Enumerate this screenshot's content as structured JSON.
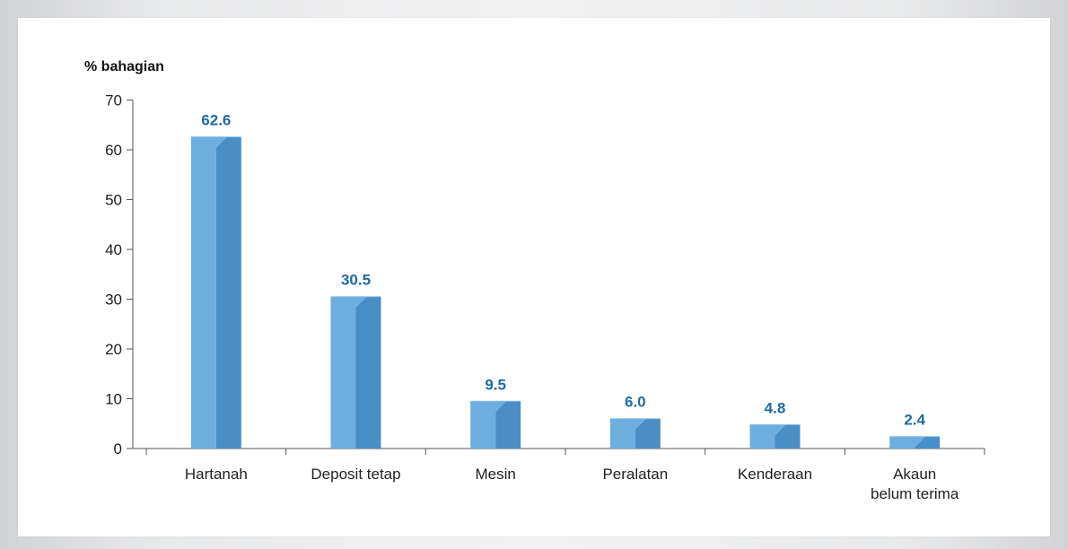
{
  "chart_data": {
    "type": "bar",
    "title": "",
    "xlabel": "",
    "ylabel": "% bahagian",
    "ylim": [
      0,
      70
    ],
    "yticks": [
      0,
      10,
      20,
      30,
      40,
      50,
      60,
      70
    ],
    "categories": [
      [
        "Hartanah"
      ],
      [
        "Deposit tetap"
      ],
      [
        "Mesin"
      ],
      [
        "Peralatan"
      ],
      [
        "Kenderaan"
      ],
      [
        "Akaun",
        "belum terima"
      ]
    ],
    "values": [
      62.6,
      30.5,
      9.5,
      6.0,
      4.8,
      2.4
    ],
    "value_labels": [
      "62.6",
      "30.5",
      "9.5",
      "6.0",
      "4.8",
      "2.4"
    ],
    "grid": false,
    "legend": "none",
    "colors": {
      "bar_front": "#6daedf",
      "bar_side": "#4a8ec6",
      "bar_top": "#8cc0e8",
      "value_label": "#1f6aa5",
      "axis": "#555555"
    }
  }
}
